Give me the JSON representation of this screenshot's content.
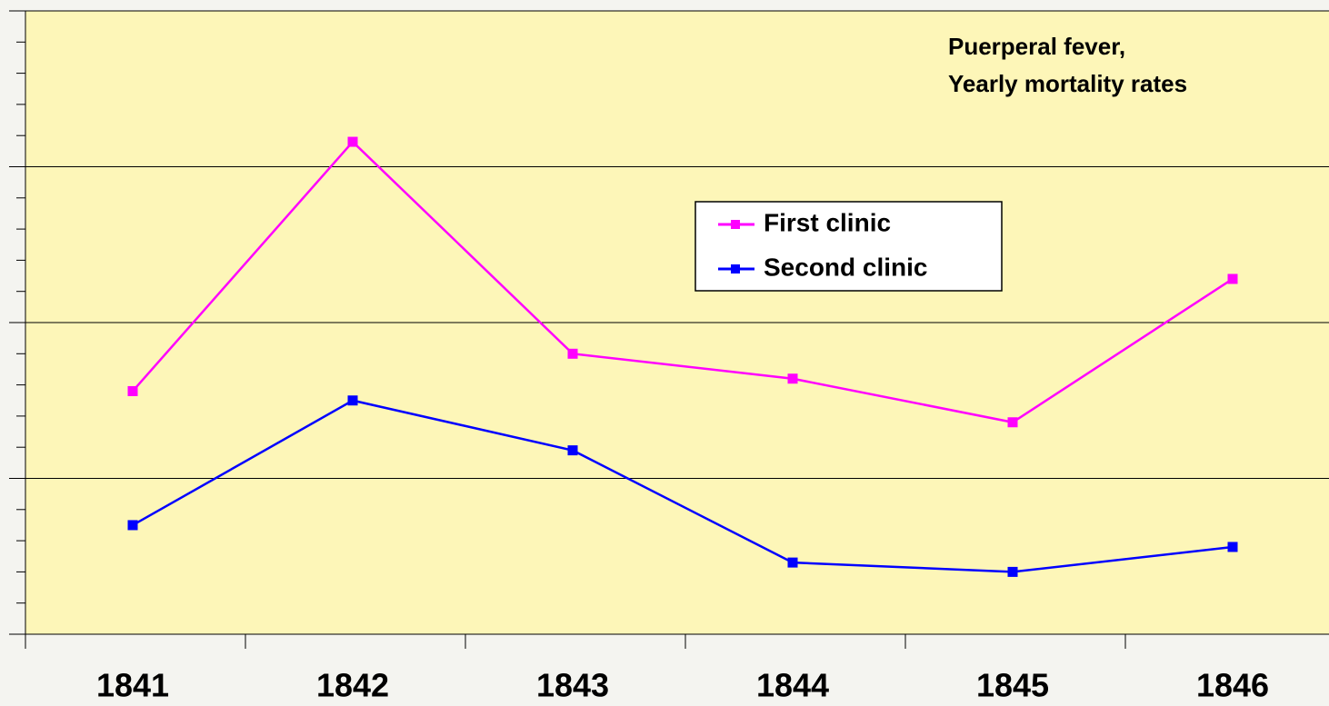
{
  "chart_data": {
    "type": "line",
    "title": [
      "Puerperal fever,",
      "Yearly mortality rates"
    ],
    "categories": [
      "1841",
      "1842",
      "1843",
      "1844",
      "1845",
      "1846"
    ],
    "series": [
      {
        "name": "First clinic",
        "color": "#ff00ff",
        "values": [
          7.8,
          15.8,
          9.0,
          8.2,
          6.8,
          11.4
        ]
      },
      {
        "name": "Second clinic",
        "color": "#0000ff",
        "values": [
          3.5,
          7.5,
          5.9,
          2.3,
          2.0,
          2.8
        ]
      }
    ],
    "ylim": [
      0,
      20
    ],
    "yticks": [
      0,
      5,
      10,
      15,
      20
    ],
    "grid": true
  }
}
